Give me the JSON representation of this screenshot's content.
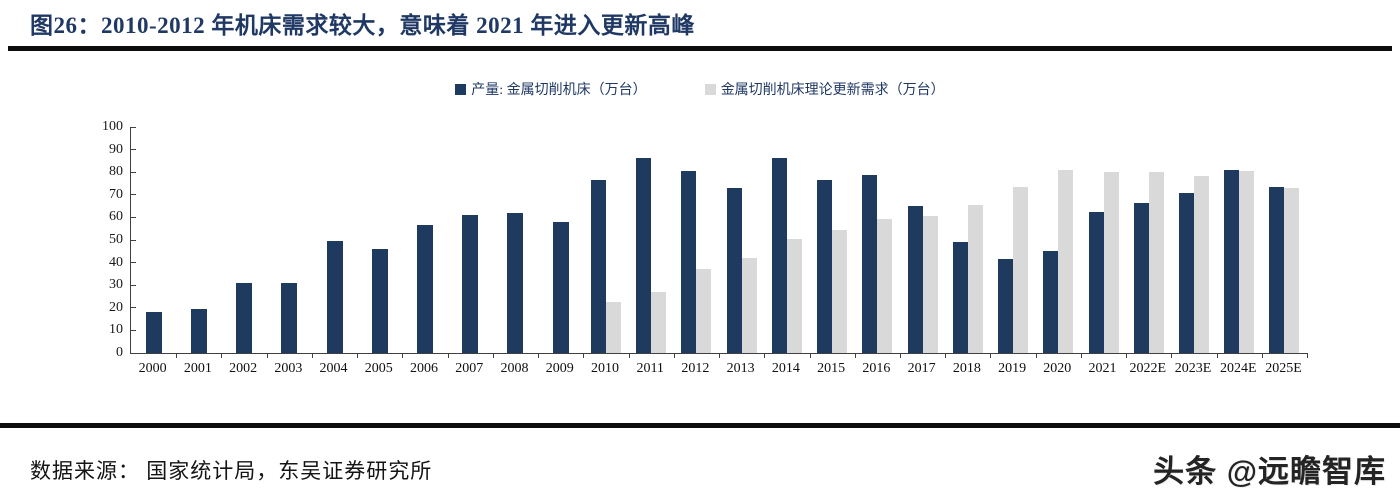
{
  "header": {
    "title": "图26：2010-2012 年机床需求较大，意味着 2021 年进入更新高峰"
  },
  "footer": {
    "source": "数据来源： 国家统计局，东吴证券研究所",
    "watermark": "头条 @远瞻智库"
  },
  "colors": {
    "title_navy": "#1F3864",
    "rule_black": "#0d0d0d",
    "axis_gray": "#404040"
  },
  "chart_data": {
    "type": "bar",
    "title": "",
    "xlabel": "",
    "ylabel": "",
    "ylim": [
      0,
      100
    ],
    "yticks": [
      0,
      10,
      20,
      30,
      40,
      50,
      60,
      70,
      80,
      90,
      100
    ],
    "grid": false,
    "legend_position": "top-center",
    "categories": [
      "2000",
      "2001",
      "2002",
      "2003",
      "2004",
      "2005",
      "2006",
      "2007",
      "2008",
      "2009",
      "2010",
      "2011",
      "2012",
      "2013",
      "2014",
      "2015",
      "2016",
      "2017",
      "2018",
      "2019",
      "2020",
      "2021",
      "2022E",
      "2023E",
      "2024E",
      "2025E"
    ],
    "series": [
      {
        "name": "产量: 金属切削机床（万台）",
        "color": "#1E3A5E",
        "values": [
          18,
          19.5,
          31,
          31,
          49.5,
          46,
          56.5,
          61,
          62,
          58,
          76.5,
          86.5,
          80.5,
          73,
          86.5,
          76.5,
          79,
          65,
          49,
          41.5,
          45,
          62.5,
          66.5,
          71,
          81,
          73.5
        ]
      },
      {
        "name": "金属切削机床理论更新需求（万台）",
        "color": "#D9D9D9",
        "values": [
          null,
          null,
          null,
          null,
          null,
          null,
          null,
          null,
          null,
          null,
          22.5,
          27,
          37,
          42,
          50.5,
          54.5,
          59.5,
          60.5,
          65.5,
          73.5,
          81,
          80,
          80,
          78.5,
          80.5,
          73
        ]
      }
    ]
  }
}
